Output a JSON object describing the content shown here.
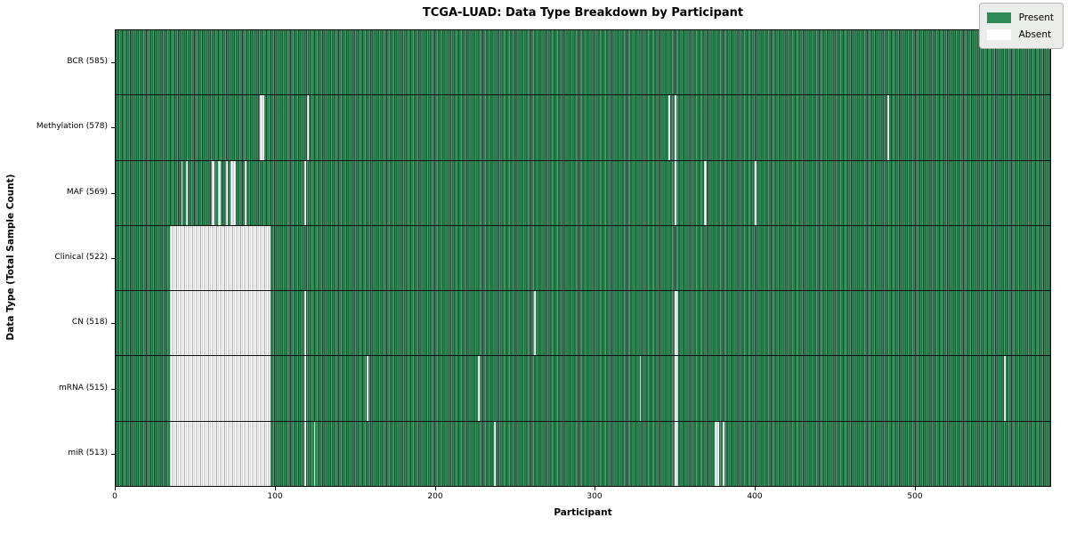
{
  "chart_data": {
    "type": "heatmap",
    "title": "TCGA-LUAD: Data Type Breakdown by Participant",
    "xlabel": "Participant",
    "ylabel": "Data Type (Total Sample Count)",
    "n_participants": 585,
    "xlim": [
      0,
      585
    ],
    "x_ticks": [
      0,
      100,
      200,
      300,
      400,
      500
    ],
    "grid": false,
    "legend": {
      "position": "upper right",
      "items": [
        {
          "label": "Present",
          "color": "#2e8b57"
        },
        {
          "label": "Absent",
          "color": "#ffffff"
        }
      ]
    },
    "colors": {
      "present": "#2e8b57",
      "absent": "#ffffff",
      "cell_edge": "#1c5e3c",
      "row_separator": "#000000",
      "legend_bg": "#eaedea"
    },
    "rows": [
      {
        "label": "BCR (585)",
        "data_type": "BCR",
        "present_count": 585,
        "absent_count": 0,
        "absent_ranges": []
      },
      {
        "label": "Methylation (578)",
        "data_type": "Methylation",
        "present_count": 578,
        "absent_count": 7,
        "absent_ranges": [
          [
            90,
            92
          ],
          [
            120,
            120
          ],
          [
            346,
            346
          ],
          [
            350,
            350
          ],
          [
            483,
            483
          ]
        ]
      },
      {
        "label": "MAF (569)",
        "data_type": "MAF",
        "present_count": 569,
        "absent_count": 16,
        "absent_ranges": [
          [
            41,
            41
          ],
          [
            44,
            44
          ],
          [
            60,
            61
          ],
          [
            64,
            65
          ],
          [
            69,
            69
          ],
          [
            72,
            74
          ],
          [
            81,
            81
          ],
          [
            118,
            118
          ],
          [
            350,
            350
          ],
          [
            368,
            369
          ],
          [
            400,
            400
          ]
        ]
      },
      {
        "label": "Clinical (522)",
        "data_type": "Clinical",
        "present_count": 522,
        "absent_count": 63,
        "absent_ranges": [
          [
            34,
            96
          ]
        ]
      },
      {
        "label": "CN (518)",
        "data_type": "CN",
        "present_count": 518,
        "absent_count": 67,
        "absent_ranges": [
          [
            34,
            96
          ],
          [
            118,
            118
          ],
          [
            262,
            262
          ],
          [
            350,
            351
          ]
        ]
      },
      {
        "label": "mRNA (515)",
        "data_type": "mRNA",
        "present_count": 515,
        "absent_count": 70,
        "absent_ranges": [
          [
            34,
            96
          ],
          [
            118,
            118
          ],
          [
            157,
            157
          ],
          [
            227,
            227
          ],
          [
            328,
            328
          ],
          [
            350,
            351
          ],
          [
            556,
            556
          ]
        ]
      },
      {
        "label": "miR (513)",
        "data_type": "miR",
        "present_count": 513,
        "absent_count": 72,
        "absent_ranges": [
          [
            34,
            96
          ],
          [
            118,
            118
          ],
          [
            124,
            124
          ],
          [
            237,
            237
          ],
          [
            350,
            351
          ],
          [
            375,
            377
          ],
          [
            380,
            380
          ]
        ]
      }
    ]
  }
}
